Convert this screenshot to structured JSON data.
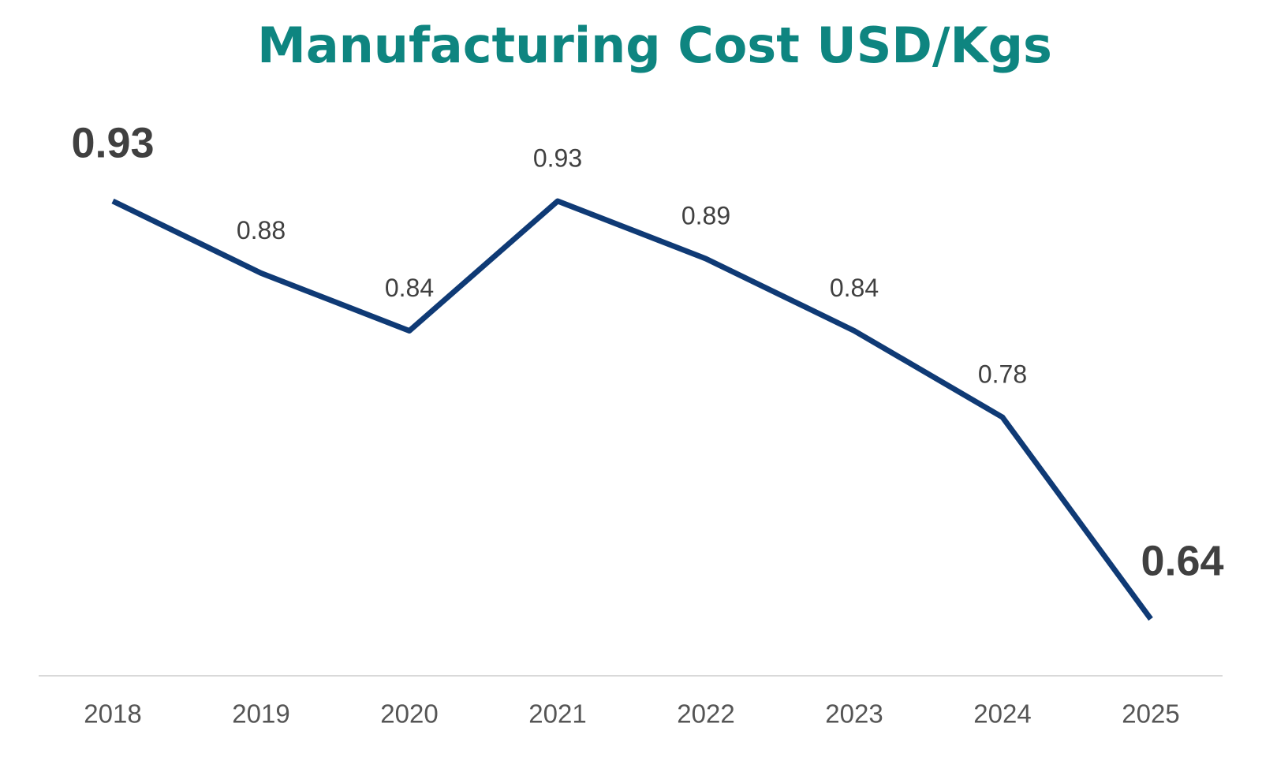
{
  "chart_data": {
    "type": "line",
    "title": "Manufacturing Cost USD/Kgs",
    "categories": [
      "2018",
      "2019",
      "2020",
      "2021",
      "2022",
      "2023",
      "2024",
      "2025"
    ],
    "series": [
      {
        "name": "Manufacturing Cost",
        "color": "#0f3a75",
        "values": [
          0.93,
          0.88,
          0.84,
          0.93,
          0.89,
          0.84,
          0.78,
          0.64
        ]
      }
    ],
    "label_colors": [
      "#ee1111",
      null,
      null,
      null,
      null,
      null,
      null,
      "#4ea72e"
    ],
    "title_color": "#0e8580"
  }
}
